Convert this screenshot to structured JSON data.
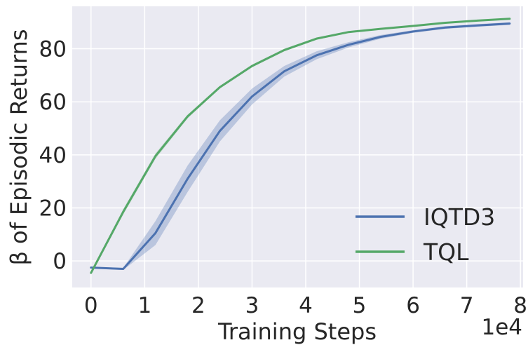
{
  "chart_data": {
    "type": "line",
    "xlabel": "Training Steps",
    "ylabel": "β of Episodic Returns",
    "x_offset_label": "1e4",
    "xlim": [
      -0.35,
      8.05
    ],
    "ylim": [
      -10,
      96
    ],
    "x_ticks": [
      0,
      1,
      2,
      3,
      4,
      5,
      6,
      7,
      8
    ],
    "x_tick_labels": [
      "0",
      "1",
      "2",
      "3",
      "4",
      "5",
      "6",
      "7",
      "8"
    ],
    "y_ticks": [
      0,
      20,
      40,
      60,
      80
    ],
    "y_tick_labels": [
      "0",
      "20",
      "40",
      "60",
      "80"
    ],
    "grid": true,
    "legend_position": "lower-right",
    "x": [
      0,
      0.6,
      1.2,
      1.8,
      2.4,
      3.0,
      3.6,
      4.2,
      4.8,
      5.4,
      6.0,
      6.6,
      7.2,
      7.8
    ],
    "series": [
      {
        "name": "IQTD3",
        "color": "#4c72b0",
        "values": [
          -2.5,
          -3.0,
          10.5,
          31.0,
          49.0,
          62.0,
          71.5,
          77.5,
          81.5,
          84.5,
          86.5,
          88.0,
          88.8,
          89.5
        ],
        "lower": [
          -2.8,
          -3.4,
          6.0,
          26.0,
          45.0,
          59.0,
          69.5,
          76.0,
          80.5,
          83.8,
          86.0,
          87.5,
          88.3,
          89.0
        ],
        "upper": [
          -2.2,
          -2.6,
          15.0,
          36.0,
          53.0,
          65.0,
          73.5,
          79.0,
          82.5,
          85.2,
          87.0,
          88.5,
          89.3,
          90.0
        ]
      },
      {
        "name": "TQL",
        "color": "#55a868",
        "values": [
          -4.5,
          18.5,
          39.5,
          54.5,
          65.5,
          73.5,
          79.5,
          83.8,
          86.3,
          87.5,
          88.6,
          89.8,
          90.6,
          91.3
        ],
        "lower": [
          -5.0,
          17.5,
          38.5,
          53.8,
          65.0,
          73.0,
          79.0,
          83.4,
          86.0,
          87.2,
          88.3,
          89.5,
          90.3,
          91.0
        ],
        "upper": [
          -4.0,
          19.5,
          40.5,
          55.2,
          66.0,
          74.0,
          80.0,
          84.2,
          86.6,
          87.8,
          88.9,
          90.1,
          90.9,
          91.6
        ]
      }
    ]
  },
  "colors": {
    "plot_background": "#eaeaf2",
    "grid": "#ffffff",
    "text": "#262626"
  }
}
